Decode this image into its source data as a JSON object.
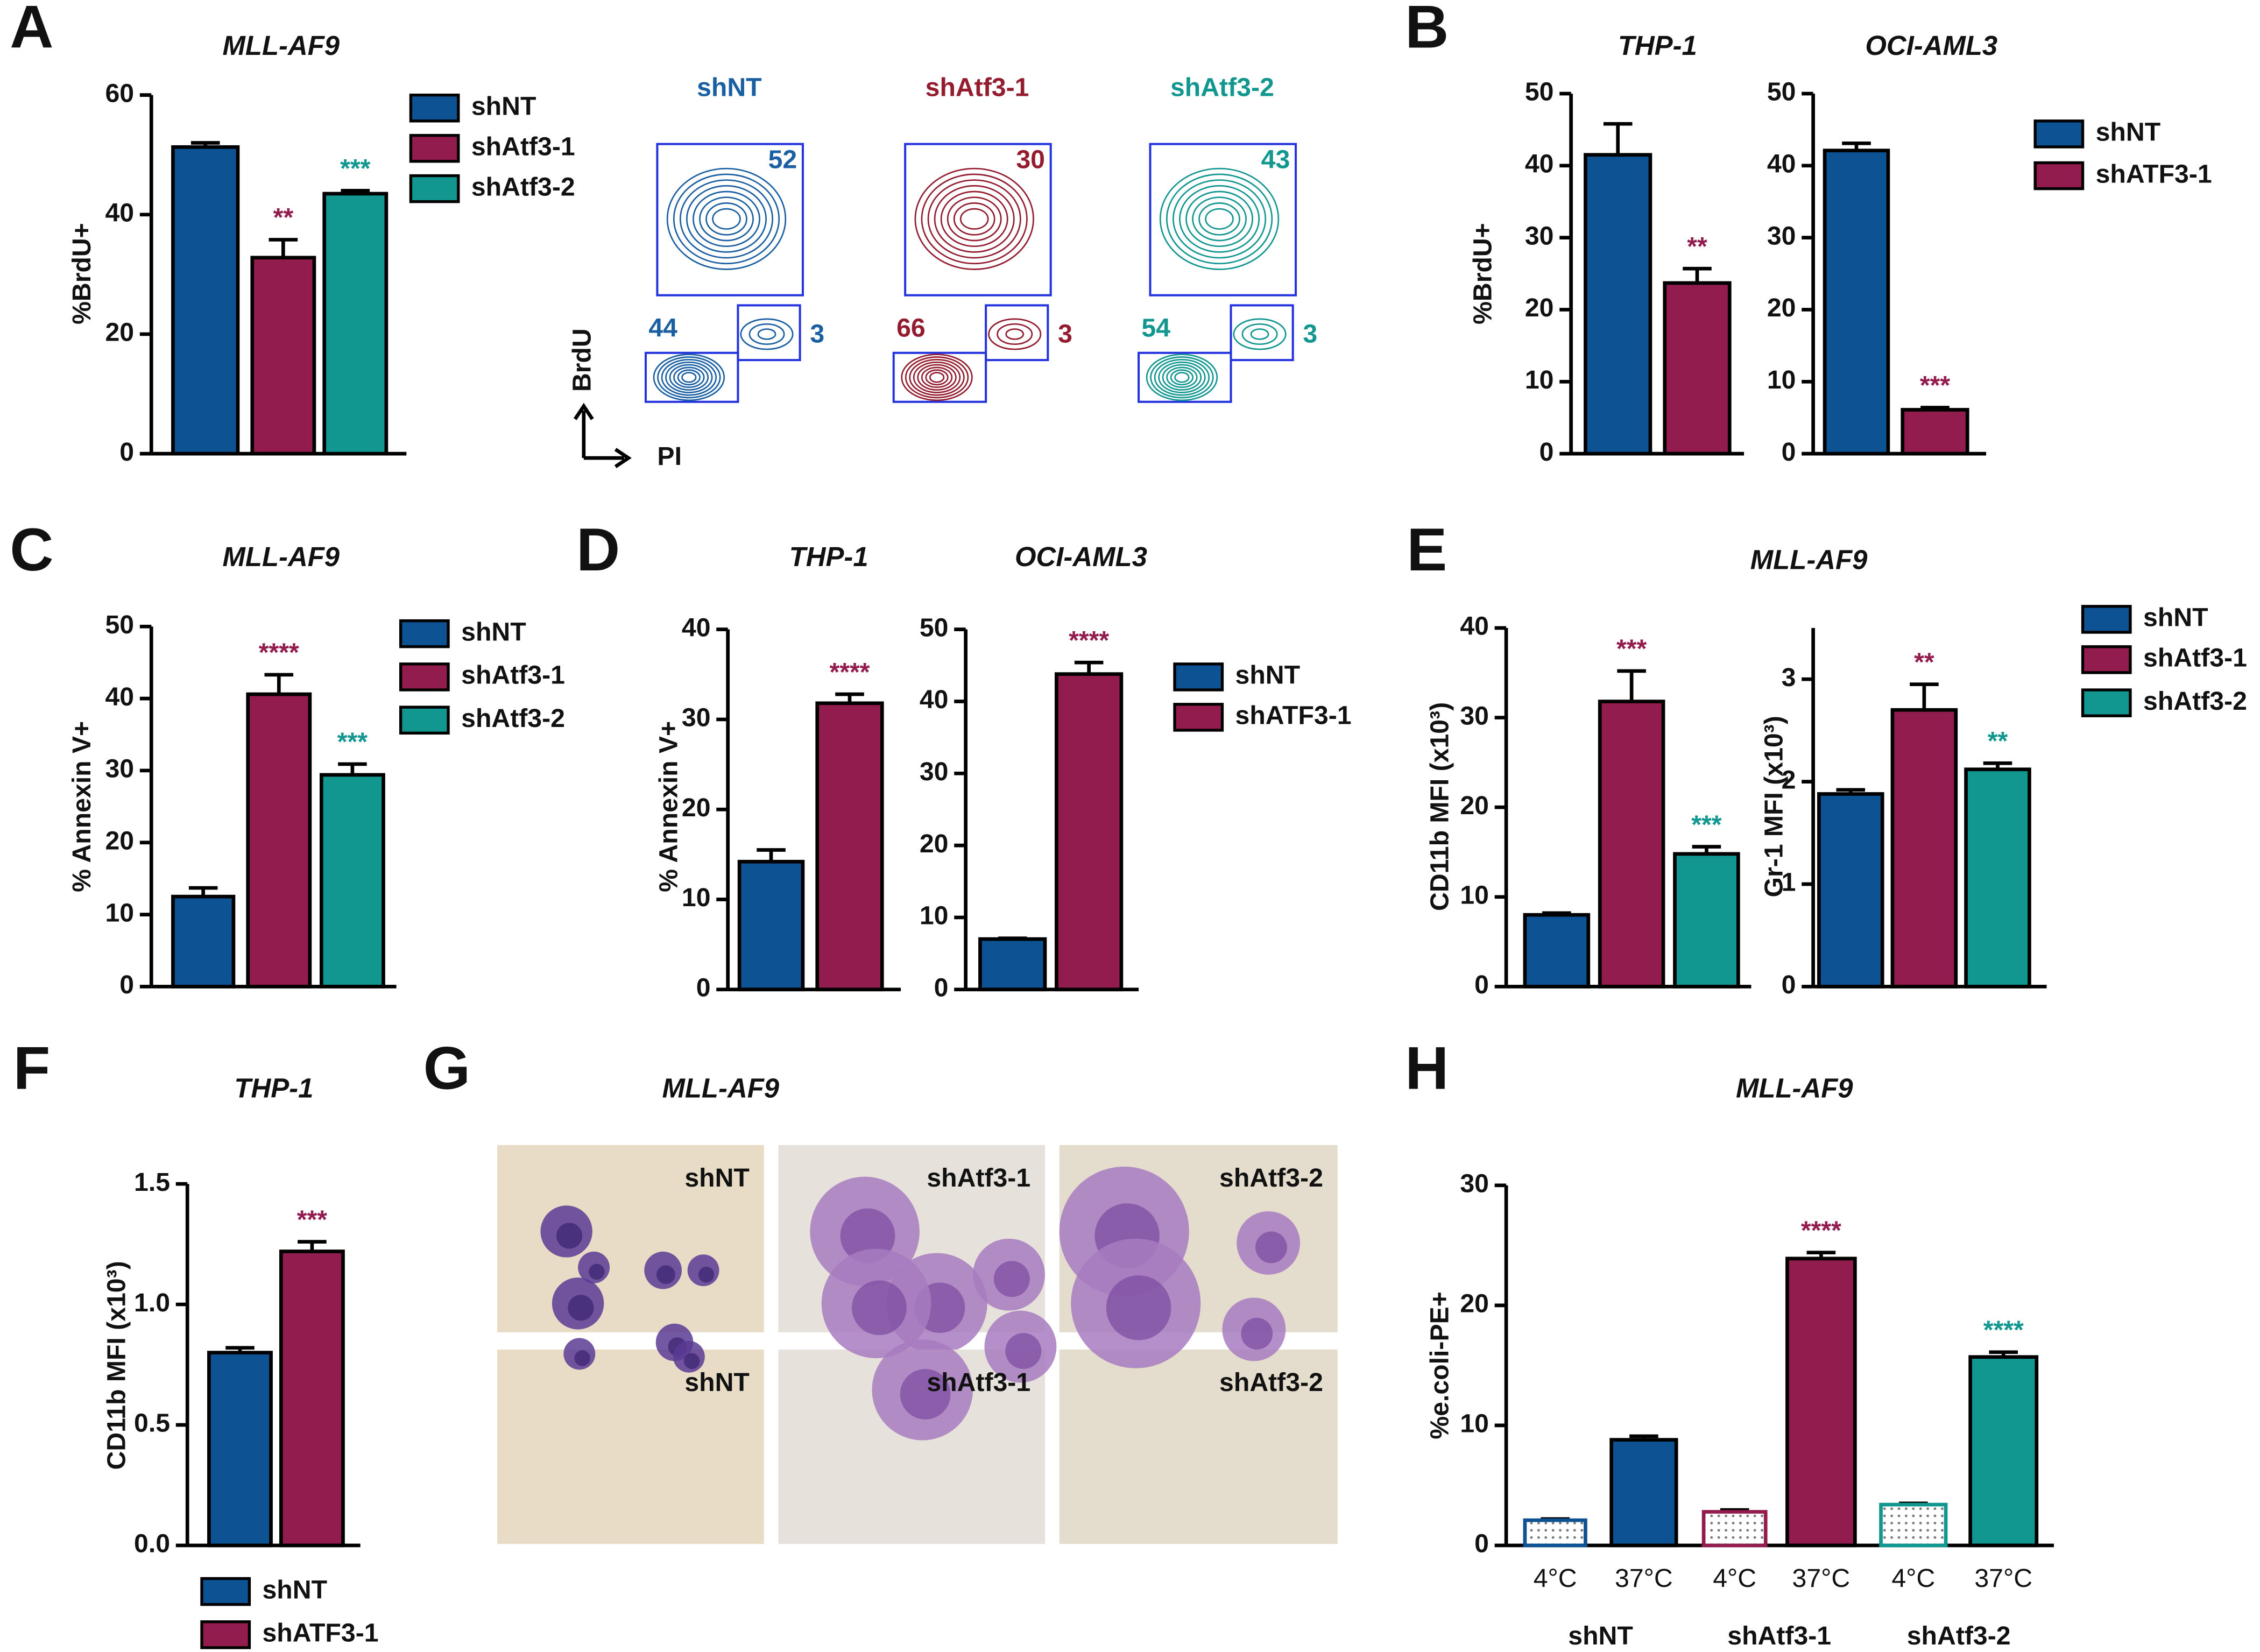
{
  "chart_data": [
    {
      "type": "bar",
      "panel": "A",
      "legend": [
        {
          "name": "shNT",
          "color": "#0d5394"
        },
        {
          "name": "shAtf3-1",
          "color": "#931c4f"
        },
        {
          "name": "shAtf3-2",
          "color": "#129690"
        }
      ],
      "subplots": [
        {
          "title": "MLL-AF9",
          "ylabel": "%BrdU+",
          "ylim": [
            0,
            60
          ],
          "yticks": [
            0,
            20,
            40,
            60
          ],
          "values": [
            51.3,
            32.8,
            43.5
          ],
          "errors": [
            0.7,
            3,
            0.5
          ],
          "significance": [
            null,
            "**",
            "***"
          ]
        }
      ]
    },
    {
      "type": "contour",
      "xlabel": "PI",
      "ylabel": "BrdU",
      "plots": [
        {
          "name": "shNT",
          "color": "#1b5fa3",
          "gates": [
            52,
            44,
            3
          ]
        },
        {
          "name": "shAtf3-1",
          "color": "#931c2f",
          "gates": [
            30,
            66,
            3
          ]
        },
        {
          "name": "shAtf3-2",
          "color": "#129690",
          "gates": [
            43,
            54,
            3
          ]
        }
      ]
    },
    {
      "type": "bar",
      "panel": "B",
      "legend": [
        {
          "name": "shNT",
          "color": "#0d5394"
        },
        {
          "name": "shATF3-1",
          "color": "#931c4f"
        }
      ],
      "subplots": [
        {
          "title": "THP-1",
          "ylabel": "%BrdU+",
          "ylim": [
            0,
            50
          ],
          "yticks": [
            0,
            10,
            20,
            30,
            40,
            50
          ],
          "values": [
            41.5,
            23.7
          ],
          "errors": [
            4.3,
            2
          ],
          "significance": [
            null,
            "**"
          ]
        },
        {
          "title": "OCI-AML3",
          "ylim": [
            0,
            50
          ],
          "yticks": [
            0,
            10,
            20,
            30,
            40,
            50
          ],
          "values": [
            42.1,
            6.1
          ],
          "errors": [
            1,
            0.3
          ],
          "significance": [
            null,
            "***"
          ]
        }
      ]
    },
    {
      "type": "bar",
      "panel": "C",
      "legend": [
        {
          "name": "shNT",
          "color": "#0d5394"
        },
        {
          "name": "shAtf3-1",
          "color": "#931c4f"
        },
        {
          "name": "shAtf3-2",
          "color": "#129690"
        }
      ],
      "subplots": [
        {
          "title": "MLL-AF9",
          "ylabel": "% Annexin V+",
          "ylim": [
            0,
            50
          ],
          "yticks": [
            0,
            10,
            20,
            30,
            40,
            50
          ],
          "values": [
            12.5,
            40.6,
            29.4
          ],
          "errors": [
            1.2,
            2.7,
            1.5
          ],
          "significance": [
            null,
            "****",
            "***"
          ]
        }
      ]
    },
    {
      "type": "bar",
      "panel": "D",
      "legend": [
        {
          "name": "shNT",
          "color": "#0d5394"
        },
        {
          "name": "shATF3-1",
          "color": "#931c4f"
        }
      ],
      "subplots": [
        {
          "title": "THP-1",
          "ylabel": "% Annexin V+",
          "ylim": [
            0,
            40
          ],
          "yticks": [
            0,
            10,
            20,
            30,
            40
          ],
          "values": [
            14.2,
            31.8
          ],
          "errors": [
            1.3,
            1
          ],
          "significance": [
            null,
            "****"
          ]
        },
        {
          "title": "OCI-AML3",
          "ylim": [
            0,
            50
          ],
          "yticks": [
            0,
            10,
            20,
            30,
            40,
            50
          ],
          "values": [
            7,
            43.8
          ],
          "errors": [
            0.1,
            1.6
          ],
          "significance": [
            null,
            "****"
          ]
        }
      ]
    },
    {
      "type": "bar",
      "panel": "E",
      "title": "MLL-AF9",
      "legend": [
        {
          "name": "shNT",
          "color": "#0d5394"
        },
        {
          "name": "shAtf3-1",
          "color": "#931c4f"
        },
        {
          "name": "shAtf3-2",
          "color": "#129690"
        }
      ],
      "subplots": [
        {
          "ylabel": "CD11b MFI (x10³)",
          "ylim": [
            0,
            40
          ],
          "yticks": [
            0,
            10,
            20,
            30,
            40
          ],
          "values": [
            8,
            31.8,
            14.8
          ],
          "errors": [
            0.2,
            3.4,
            0.8
          ],
          "significance": [
            null,
            "***",
            "***"
          ]
        },
        {
          "ylabel": "Gr-1 MFI (x10³)",
          "ylim": [
            0,
            3.5
          ],
          "yticks": [
            0,
            1,
            2,
            3
          ],
          "values": [
            1.88,
            2.7,
            2.12
          ],
          "errors": [
            0.04,
            0.25,
            0.06
          ],
          "significance": [
            null,
            "**",
            "**"
          ]
        }
      ]
    },
    {
      "type": "bar",
      "panel": "F",
      "legend": [
        {
          "name": "shNT",
          "color": "#0d5394"
        },
        {
          "name": "shATF3-1",
          "color": "#931c4f"
        }
      ],
      "subplots": [
        {
          "title": "THP-1",
          "ylabel": "CD11b MFI (x10³)",
          "ylim": [
            0,
            1.5
          ],
          "yticks": [
            {
              "value": 0,
              "label": "0.0"
            },
            0.5,
            {
              "value": 1,
              "label": "1.0"
            },
            1.5
          ],
          "values": [
            0.8,
            1.22
          ],
          "errors": [
            0.02,
            0.04
          ],
          "significance": [
            null,
            "***"
          ]
        }
      ]
    },
    {
      "type": "micrograph",
      "panel": "G",
      "title": "MLL-AF9",
      "rows": [
        [
          "shNT",
          "shAtf3-1",
          "shAtf3-2"
        ],
        [
          "shNT",
          "shAtf3-1",
          "shAtf3-2"
        ]
      ]
    },
    {
      "type": "grouped-bar",
      "panel": "H",
      "title": "MLL-AF9",
      "ylabel": "%e.coli-PE+",
      "categories": [
        "4°C",
        "37°C",
        "4°C",
        "37°C",
        "4°C",
        "37°C"
      ],
      "groups": [
        "shNT",
        "shAtf3-1",
        "shAtf3-2"
      ],
      "colors": [
        "#0d5394",
        "#0d5394",
        "#931c4f",
        "#931c4f",
        "#129690",
        "#129690"
      ],
      "patterns": [
        "dotted",
        "solid",
        "dotted",
        "solid",
        "dotted",
        "solid"
      ],
      "ylim": [
        0,
        30
      ],
      "yticks": [
        0,
        10,
        20,
        30
      ],
      "values": [
        2.1,
        8.8,
        2.8,
        23.9,
        3.4,
        15.7
      ],
      "errors": [
        0.1,
        0.3,
        0.15,
        0.5,
        0.1,
        0.4
      ],
      "significance": [
        null,
        null,
        null,
        "****",
        null,
        "****"
      ]
    }
  ]
}
